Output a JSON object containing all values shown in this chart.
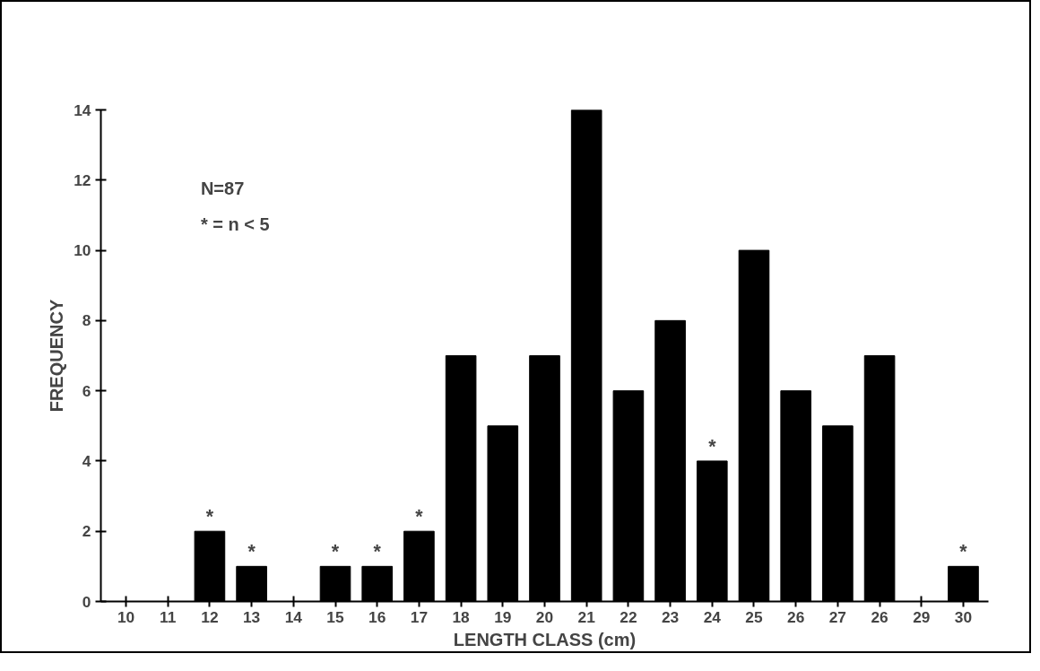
{
  "chart_data": {
    "type": "bar",
    "categories": [
      "10",
      "11",
      "12",
      "13",
      "14",
      "15",
      "16",
      "17",
      "18",
      "19",
      "20",
      "21",
      "22",
      "23",
      "24",
      "25",
      "26",
      "27",
      "26",
      "29",
      "30"
    ],
    "values": [
      0,
      0,
      2,
      1,
      0,
      1,
      1,
      2,
      7,
      5,
      7,
      14,
      6,
      8,
      4,
      10,
      6,
      5,
      7,
      0,
      1
    ],
    "color": "#000000",
    "xlabel": "LENGTH CLASS (cm)",
    "ylabel": "FREQUENCY",
    "ylim": [
      0,
      14
    ],
    "yticks": [
      0,
      2,
      4,
      6,
      8,
      10,
      12,
      14
    ],
    "grid": false,
    "annotations": [
      "N=87",
      "* = n < 5",
      {
        "text": "*",
        "x": "12",
        "y": 2
      },
      {
        "text": "*",
        "x": "13",
        "y": 1
      },
      {
        "text": "*",
        "x": "15",
        "y": 1
      },
      {
        "text": "*",
        "x": "16",
        "y": 1
      },
      {
        "text": "*",
        "x": "17",
        "y": 2
      },
      {
        "text": "*",
        "x": "24",
        "y": 4
      },
      {
        "text": "*",
        "x": "30",
        "y": 1
      }
    ]
  }
}
